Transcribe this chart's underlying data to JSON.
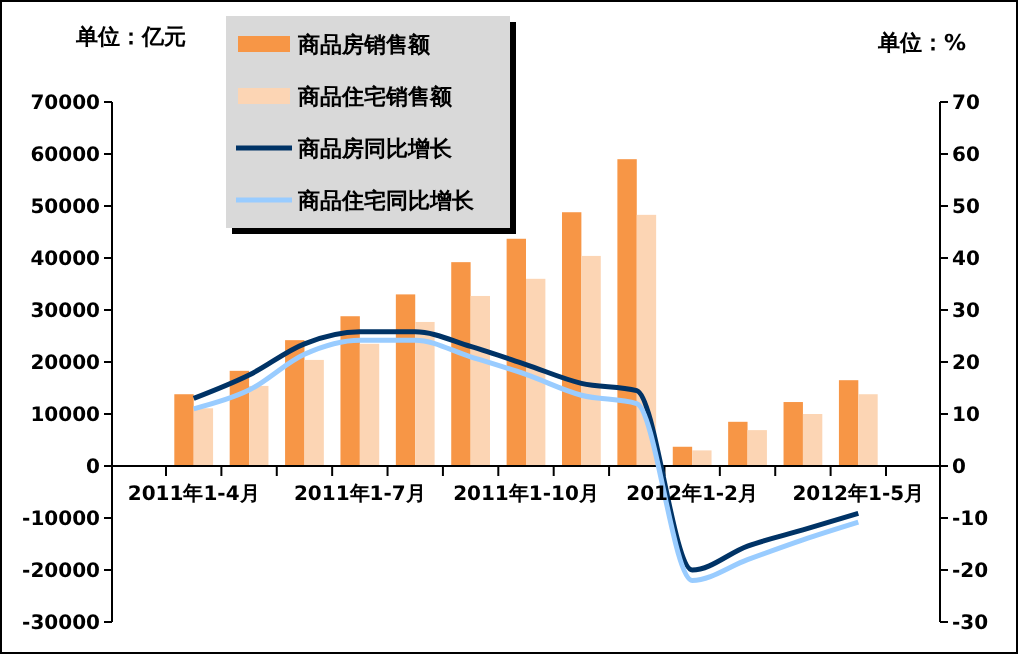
{
  "chart_data": {
    "type": "bar",
    "ylabel": "单位：亿元",
    "y2label": "单位：%",
    "categories": [
      "2011年1-4月",
      null,
      null,
      "2011年1-7月",
      null,
      null,
      "2011年1-10月",
      null,
      null,
      "2012年1-2月",
      null,
      null,
      "2012年1-5月"
    ],
    "series": [
      {
        "name": "商品房销售额",
        "color": "#f79646",
        "values": [
          13800,
          18300,
          24200,
          28800,
          33000,
          39200,
          43700,
          48800,
          59000,
          3700,
          8500,
          12300,
          16500
        ]
      },
      {
        "name": "商品住宅销售额",
        "color": "#fcd5b4",
        "values": [
          11100,
          15400,
          20400,
          23500,
          27700,
          32700,
          36000,
          40400,
          48300,
          3000,
          6900,
          10000,
          13800
        ]
      },
      {
        "name": "商品房同比增长",
        "type": "line",
        "axis": "y2",
        "color": "#003366",
        "values": [
          13,
          17.5,
          23.5,
          25.8,
          25.8,
          23,
          19.5,
          15.9,
          14.5,
          -20,
          -15.4,
          -12.3,
          -9.1
        ]
      },
      {
        "name": "商品住宅同比增长",
        "type": "line",
        "axis": "y2",
        "color": "#99ccff",
        "values": [
          11,
          14.6,
          21.5,
          24.2,
          24.2,
          21,
          17.6,
          13.6,
          12,
          -22,
          -18,
          -14.2,
          -10.8
        ]
      }
    ],
    "ylim": [
      -30000,
      70000
    ],
    "yticks": [
      -30000,
      -20000,
      -10000,
      0,
      10000,
      20000,
      30000,
      40000,
      50000,
      60000,
      70000
    ],
    "y2lim": [
      -30,
      70
    ],
    "y2ticks": [
      -30,
      -20,
      -10,
      0,
      10,
      20,
      30,
      40,
      50,
      60,
      70
    ],
    "legend": "top left",
    "grid": false,
    "marker": "none",
    "line_style": "solid"
  }
}
